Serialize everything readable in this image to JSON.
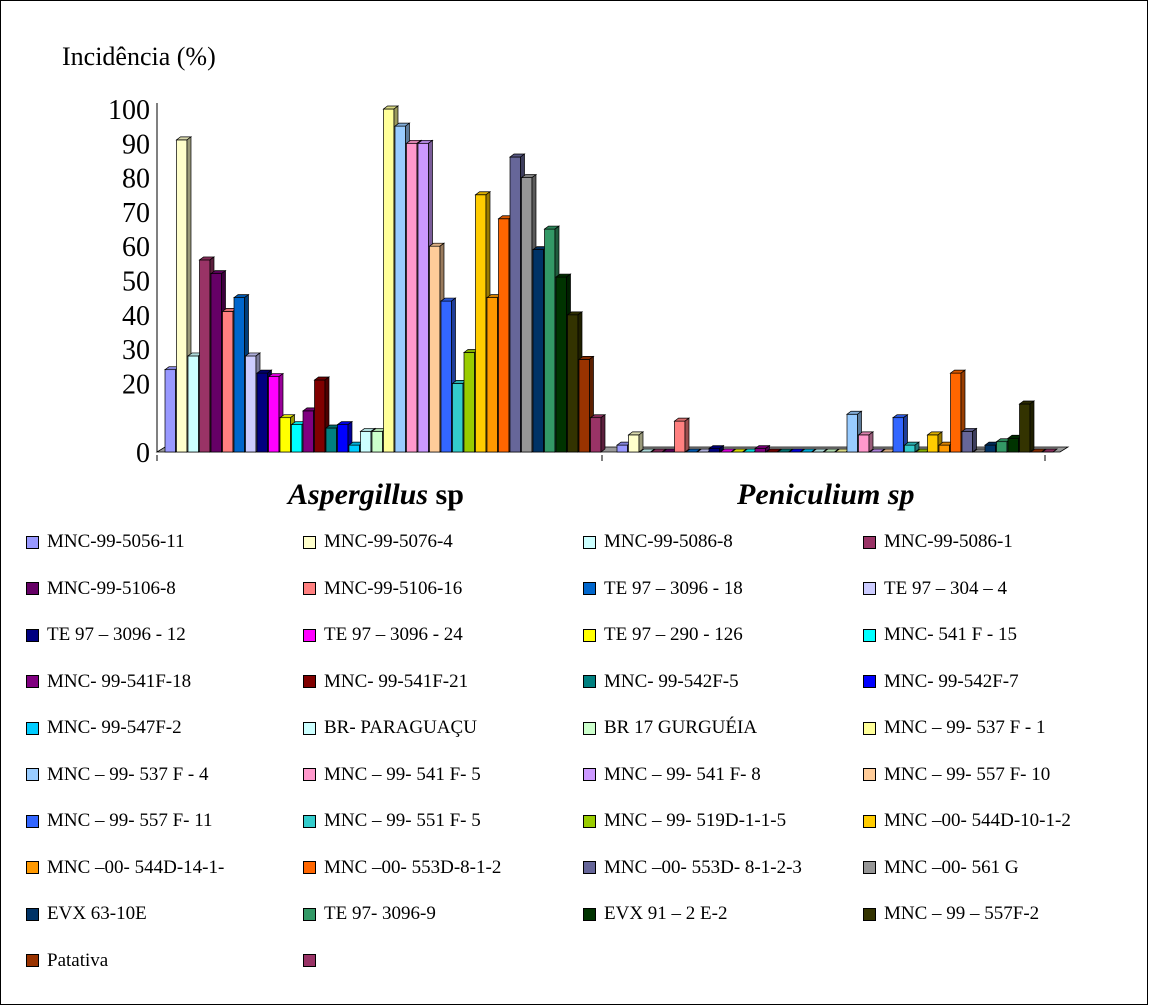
{
  "chart_data": {
    "type": "bar",
    "title": "",
    "ylabel": "Incidência (%)",
    "xlabel": "",
    "ylim": [
      0,
      100
    ],
    "yticks": [
      0,
      20,
      30,
      40,
      50,
      60,
      70,
      80,
      90,
      100
    ],
    "grid": false,
    "legend_position": "bottom",
    "categories": [
      {
        "label": "Aspergillus",
        "suffix": " sp"
      },
      {
        "label": "Peniculium sp",
        "suffix": ""
      }
    ],
    "series": [
      {
        "name": "MNC-99-5056-11",
        "color": "#9999FF",
        "values": [
          24,
          2
        ]
      },
      {
        "name": "MNC-99-5076-4",
        "color": "#FFFFCC",
        "values": [
          91,
          5
        ]
      },
      {
        "name": "MNC-99-5086-8",
        "color": "#CCFFFF",
        "values": [
          28,
          0
        ]
      },
      {
        "name": "MNC-99-5086-1",
        "color": "#993366",
        "values": [
          56,
          0
        ]
      },
      {
        "name": "MNC-99-5106-8",
        "color": "#660066",
        "values": [
          52,
          0
        ]
      },
      {
        "name": "MNC-99-5106-16",
        "color": "#FF8080",
        "values": [
          41,
          9
        ]
      },
      {
        "name": "TE 97 – 3096 - 18",
        "color": "#0066CC",
        "values": [
          45,
          0
        ]
      },
      {
        "name": "TE 97 – 304 – 4",
        "color": "#CCCCFF",
        "values": [
          28,
          0
        ]
      },
      {
        "name": "TE 97 – 3096 - 12",
        "color": "#000080",
        "values": [
          23,
          1
        ]
      },
      {
        "name": "TE 97 – 3096 - 24",
        "color": "#FF00FF",
        "values": [
          22,
          0
        ]
      },
      {
        "name": "TE 97 – 290 - 126",
        "color": "#FFFF00",
        "values": [
          10,
          0
        ]
      },
      {
        "name": "MNC- 541 F - 15",
        "color": "#00FFFF",
        "values": [
          8,
          0
        ]
      },
      {
        "name": "MNC- 99-541F-18",
        "color": "#800080",
        "values": [
          12,
          1
        ]
      },
      {
        "name": "MNC- 99-541F-21",
        "color": "#800000",
        "values": [
          21,
          0
        ]
      },
      {
        "name": "MNC- 99-542F-5",
        "color": "#008080",
        "values": [
          7,
          0
        ]
      },
      {
        "name": "MNC- 99-542F-7",
        "color": "#0000FF",
        "values": [
          8,
          0
        ]
      },
      {
        "name": "MNC- 99-547F-2",
        "color": "#00CCFF",
        "values": [
          2,
          0
        ]
      },
      {
        "name": "BR- PARAGUAÇU",
        "color": "#CCFFFF",
        "values": [
          6,
          0
        ]
      },
      {
        "name": "BR 17 GURGUÉIA",
        "color": "#CCFFCC",
        "values": [
          6,
          0
        ]
      },
      {
        "name": "MNC – 99- 537 F - 1",
        "color": "#FFFF99",
        "values": [
          100,
          0
        ]
      },
      {
        "name": "MNC – 99- 537 F - 4",
        "color": "#99CCFF",
        "values": [
          95,
          11
        ]
      },
      {
        "name": "MNC – 99- 541 F- 5",
        "color": "#FF99CC",
        "values": [
          90,
          5
        ]
      },
      {
        "name": "MNC – 99- 541 F- 8",
        "color": "#CC99FF",
        "values": [
          90,
          0
        ]
      },
      {
        "name": "MNC – 99- 557 F- 10",
        "color": "#FFCC99",
        "values": [
          60,
          0
        ]
      },
      {
        "name": "MNC – 99- 557 F- 11",
        "color": "#3366FF",
        "values": [
          44,
          10
        ]
      },
      {
        "name": "MNC – 99- 551 F- 5",
        "color": "#33CCCC",
        "values": [
          20,
          2
        ]
      },
      {
        "name": "MNC – 99- 519D-1-1-5",
        "color": "#99CC00",
        "values": [
          29,
          0
        ]
      },
      {
        "name": "MNC –00- 544D-10-1-2",
        "color": "#FFCC00",
        "values": [
          75,
          5
        ]
      },
      {
        "name": "MNC –00- 544D-14-1-",
        "color": "#FF9900",
        "values": [
          45,
          2
        ]
      },
      {
        "name": "MNC –00- 553D-8-1-2",
        "color": "#FF6600",
        "values": [
          68,
          23
        ]
      },
      {
        "name": "MNC –00- 553D- 8-1-2-3",
        "color": "#666699",
        "values": [
          86,
          6
        ]
      },
      {
        "name": "MNC –00- 561 G",
        "color": "#969696",
        "values": [
          80,
          0
        ]
      },
      {
        "name": "EVX 63-10E",
        "color": "#003366",
        "values": [
          59,
          2
        ]
      },
      {
        "name": "TE 97- 3096-9",
        "color": "#339966",
        "values": [
          65,
          3
        ]
      },
      {
        "name": "EVX 91 – 2 E-2",
        "color": "#003300",
        "values": [
          51,
          4
        ]
      },
      {
        "name": "MNC – 99 – 557F-2",
        "color": "#333300",
        "values": [
          40,
          14
        ]
      },
      {
        "name": "Patativa",
        "color": "#993300",
        "values": [
          27,
          0
        ]
      },
      {
        "name": "",
        "color": "#993366",
        "values": [
          10,
          0
        ]
      }
    ]
  }
}
